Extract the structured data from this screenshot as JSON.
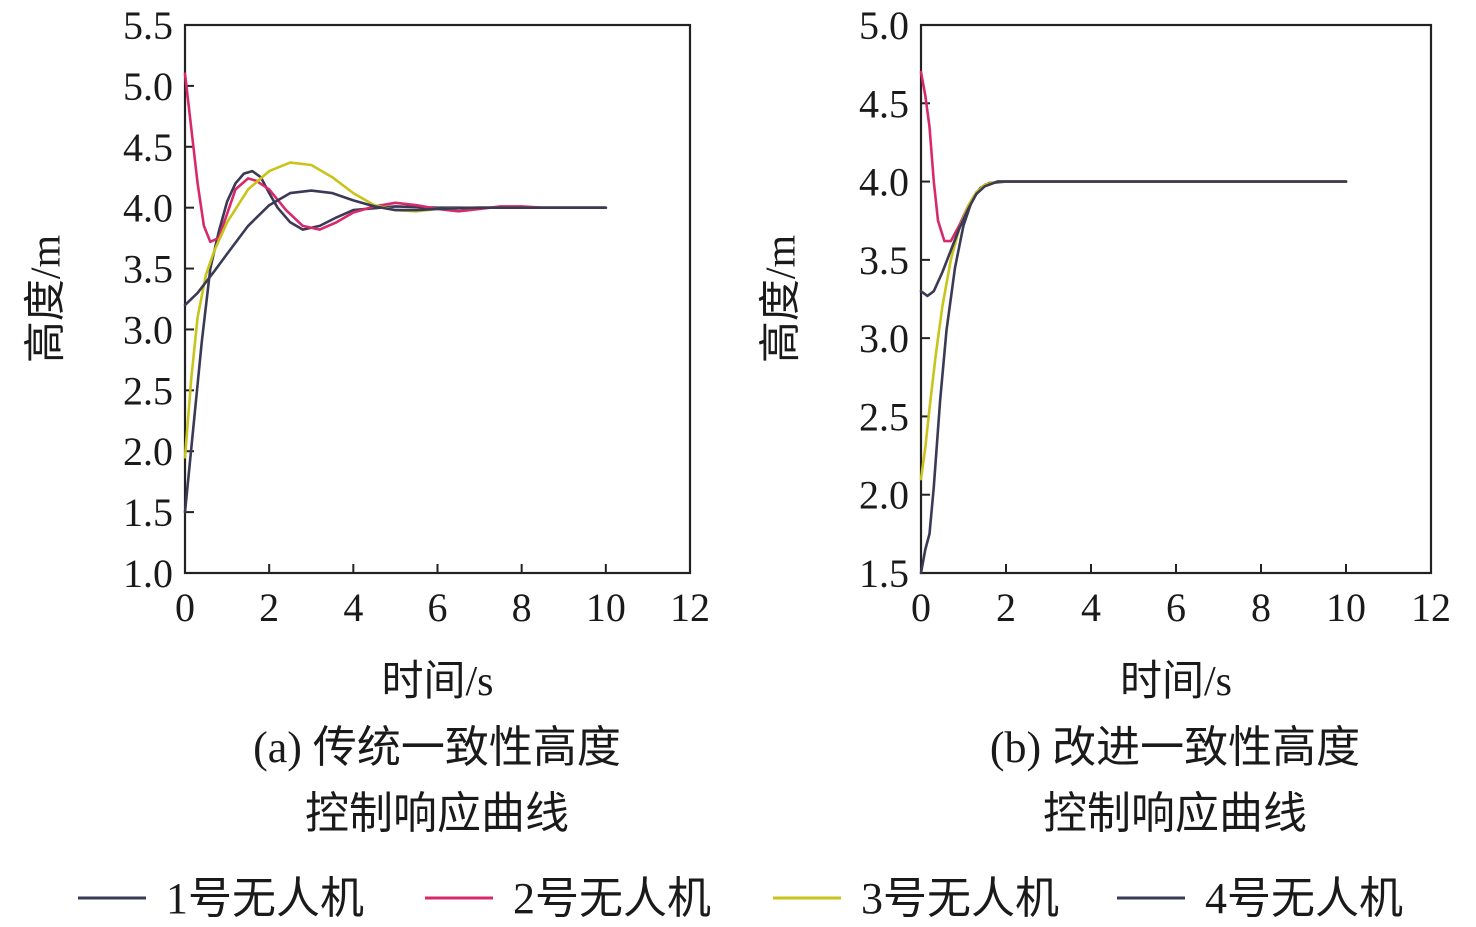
{
  "legend": [
    {
      "label": "1号无人机",
      "color": "#3a3a56"
    },
    {
      "label": "2号无人机",
      "color": "#d8296a"
    },
    {
      "label": "3号无人机",
      "color": "#c9c41a"
    },
    {
      "label": "4号无人机",
      "color": "#3a3a56"
    }
  ],
  "chart_data": [
    {
      "type": "line",
      "caption_line1": "(a) 传统一致性高度",
      "caption_line2": "控制响应曲线",
      "xlabel": "时间/s",
      "ylabel": "高度/m",
      "xlim": [
        0,
        12
      ],
      "ylim": [
        1.0,
        5.5
      ],
      "xticks": [
        "0",
        "2",
        "4",
        "6",
        "8",
        "10",
        "12"
      ],
      "yticks": [
        "1.0",
        "1.5",
        "2.0",
        "2.5",
        "3.0",
        "3.5",
        "4.0",
        "4.5",
        "5.0",
        "5.5"
      ],
      "series": [
        {
          "name": "1号无人机",
          "color": "#3a3a56",
          "points": [
            [
              0,
              1.5
            ],
            [
              0.2,
              2.2
            ],
            [
              0.4,
              2.9
            ],
            [
              0.6,
              3.5
            ],
            [
              0.8,
              3.8
            ],
            [
              1.0,
              4.05
            ],
            [
              1.2,
              4.2
            ],
            [
              1.4,
              4.28
            ],
            [
              1.6,
              4.3
            ],
            [
              1.8,
              4.25
            ],
            [
              2.0,
              4.12
            ],
            [
              2.2,
              4.0
            ],
            [
              2.5,
              3.88
            ],
            [
              2.8,
              3.82
            ],
            [
              3.2,
              3.85
            ],
            [
              3.6,
              3.92
            ],
            [
              4.0,
              3.98
            ],
            [
              5.0,
              4.01
            ],
            [
              6.0,
              4.0
            ],
            [
              8.0,
              4.0
            ],
            [
              10.0,
              4.0
            ]
          ]
        },
        {
          "name": "2号无人机",
          "color": "#d8296a",
          "points": [
            [
              0,
              5.1
            ],
            [
              0.15,
              4.65
            ],
            [
              0.3,
              4.2
            ],
            [
              0.45,
              3.85
            ],
            [
              0.6,
              3.72
            ],
            [
              0.8,
              3.75
            ],
            [
              1.0,
              3.95
            ],
            [
              1.2,
              4.15
            ],
            [
              1.5,
              4.24
            ],
            [
              1.7,
              4.22
            ],
            [
              2.0,
              4.15
            ],
            [
              2.4,
              3.98
            ],
            [
              2.8,
              3.85
            ],
            [
              3.2,
              3.82
            ],
            [
              3.6,
              3.88
            ],
            [
              4.0,
              3.96
            ],
            [
              4.5,
              4.01
            ],
            [
              5.0,
              4.04
            ],
            [
              5.5,
              4.02
            ],
            [
              6.0,
              3.99
            ],
            [
              6.5,
              3.97
            ],
            [
              7.0,
              3.99
            ],
            [
              7.5,
              4.01
            ],
            [
              8.0,
              4.01
            ],
            [
              8.5,
              4.0
            ],
            [
              10.0,
              4.0
            ]
          ]
        },
        {
          "name": "3号无人机",
          "color": "#c9c41a",
          "points": [
            [
              0,
              1.95
            ],
            [
              0.15,
              2.6
            ],
            [
              0.3,
              3.1
            ],
            [
              0.5,
              3.45
            ],
            [
              0.7,
              3.65
            ],
            [
              1.0,
              3.88
            ],
            [
              1.5,
              4.15
            ],
            [
              2.0,
              4.3
            ],
            [
              2.5,
              4.37
            ],
            [
              3.0,
              4.35
            ],
            [
              3.5,
              4.25
            ],
            [
              4.0,
              4.12
            ],
            [
              4.5,
              4.02
            ],
            [
              5.0,
              3.98
            ],
            [
              5.5,
              3.97
            ],
            [
              6.0,
              3.99
            ],
            [
              7.0,
              4.0
            ],
            [
              10.0,
              4.0
            ]
          ]
        },
        {
          "name": "4号无人机",
          "color": "#3a3a56",
          "points": [
            [
              0,
              3.2
            ],
            [
              0.3,
              3.3
            ],
            [
              0.7,
              3.48
            ],
            [
              1.0,
              3.62
            ],
            [
              1.5,
              3.85
            ],
            [
              2.0,
              4.02
            ],
            [
              2.5,
              4.12
            ],
            [
              3.0,
              4.14
            ],
            [
              3.5,
              4.12
            ],
            [
              4.0,
              4.06
            ],
            [
              4.5,
              4.01
            ],
            [
              5.0,
              3.98
            ],
            [
              5.5,
              3.98
            ],
            [
              6.0,
              3.99
            ],
            [
              7.0,
              4.0
            ],
            [
              10.0,
              4.0
            ]
          ]
        }
      ]
    },
    {
      "type": "line",
      "caption_line1": "(b) 改进一致性高度",
      "caption_line2": "控制响应曲线",
      "xlabel": "时间/s",
      "ylabel": "高度/m",
      "xlim": [
        0,
        12
      ],
      "ylim": [
        1.5,
        5.0
      ],
      "xticks": [
        "0",
        "2",
        "4",
        "6",
        "8",
        "10",
        "12"
      ],
      "yticks": [
        "1.5",
        "2.0",
        "2.5",
        "3.0",
        "3.5",
        "4.0",
        "4.5",
        "5.0"
      ],
      "series": [
        {
          "name": "1号无人机",
          "color": "#3a3a56",
          "points": [
            [
              0,
              1.5
            ],
            [
              0.1,
              1.65
            ],
            [
              0.2,
              1.75
            ],
            [
              0.3,
              2.05
            ],
            [
              0.45,
              2.6
            ],
            [
              0.6,
              3.05
            ],
            [
              0.8,
              3.45
            ],
            [
              1.0,
              3.72
            ],
            [
              1.2,
              3.88
            ],
            [
              1.4,
              3.96
            ],
            [
              1.6,
              3.99
            ],
            [
              2.0,
              4.0
            ],
            [
              10.0,
              4.0
            ]
          ]
        },
        {
          "name": "2号无人机",
          "color": "#d8296a",
          "points": [
            [
              0,
              4.7
            ],
            [
              0.1,
              4.55
            ],
            [
              0.2,
              4.35
            ],
            [
              0.3,
              4.0
            ],
            [
              0.4,
              3.75
            ],
            [
              0.55,
              3.62
            ],
            [
              0.7,
              3.62
            ],
            [
              0.9,
              3.72
            ],
            [
              1.1,
              3.84
            ],
            [
              1.3,
              3.93
            ],
            [
              1.5,
              3.98
            ],
            [
              1.8,
              4.0
            ],
            [
              10.0,
              4.0
            ]
          ]
        },
        {
          "name": "3号无人机",
          "color": "#c9c41a",
          "points": [
            [
              0,
              2.1
            ],
            [
              0.1,
              2.3
            ],
            [
              0.2,
              2.55
            ],
            [
              0.35,
              2.9
            ],
            [
              0.5,
              3.2
            ],
            [
              0.7,
              3.5
            ],
            [
              0.9,
              3.7
            ],
            [
              1.1,
              3.84
            ],
            [
              1.3,
              3.93
            ],
            [
              1.5,
              3.98
            ],
            [
              1.8,
              4.0
            ],
            [
              10.0,
              4.0
            ]
          ]
        },
        {
          "name": "4号无人机",
          "color": "#3a3a56",
          "points": [
            [
              0,
              3.3
            ],
            [
              0.15,
              3.27
            ],
            [
              0.3,
              3.3
            ],
            [
              0.5,
              3.42
            ],
            [
              0.7,
              3.56
            ],
            [
              0.9,
              3.7
            ],
            [
              1.1,
              3.82
            ],
            [
              1.3,
              3.92
            ],
            [
              1.5,
              3.97
            ],
            [
              1.8,
              4.0
            ],
            [
              10.0,
              4.0
            ]
          ]
        }
      ]
    }
  ]
}
